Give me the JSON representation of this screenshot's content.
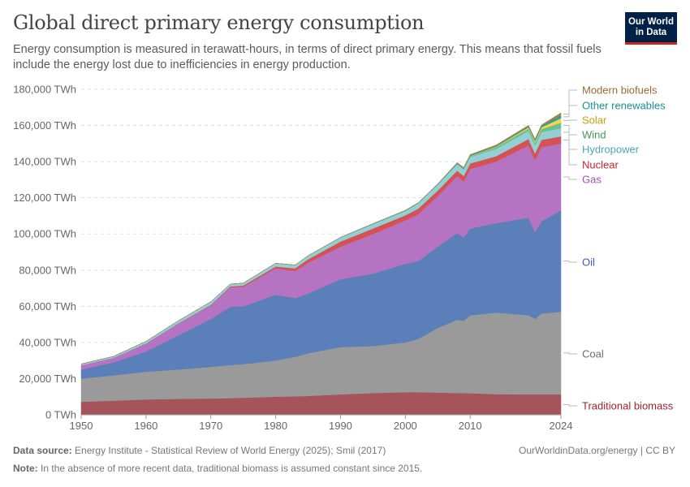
{
  "title": "Global direct primary energy consumption",
  "subtitle": "Energy consumption is measured in terawatt-hours, in terms of direct primary energy. This means that fossil fuels include the energy lost due to inefficiencies in energy production.",
  "logo": {
    "line1": "Our World",
    "line2": "in Data"
  },
  "footer": {
    "source_label": "Data source:",
    "source": "Energy Institute - Statistical Review of World Energy (2025); Smil (2017)",
    "note_label": "Note:",
    "note": "In the absence of more recent data, traditional biomass is assumed constant since 2015.",
    "license": "OurWorldinData.org/energy | CC BY"
  },
  "chart_data": {
    "type": "area",
    "stacked": true,
    "unit": "TWh",
    "ylim": [
      0,
      180000
    ],
    "xlim": [
      1950,
      2024
    ],
    "yticks": [
      "0 TWh",
      "20,000 TWh",
      "40,000 TWh",
      "60,000 TWh",
      "80,000 TWh",
      "100,000 TWh",
      "120,000 TWh",
      "140,000 TWh",
      "160,000 TWh",
      "180,000 TWh"
    ],
    "ytick_values": [
      0,
      20000,
      40000,
      60000,
      80000,
      100000,
      120000,
      140000,
      160000,
      180000
    ],
    "xticks": [
      "1950",
      "1960",
      "1970",
      "1980",
      "1990",
      "2000",
      "2010",
      "2024"
    ],
    "xtick_values": [
      1950,
      1960,
      1970,
      1980,
      1990,
      2000,
      2010,
      2024
    ],
    "grid": "horizontal dashed",
    "legend": "right, inline labels",
    "x": [
      1950,
      1955,
      1960,
      1965,
      1970,
      1973,
      1975,
      1980,
      1983,
      1985,
      1990,
      1995,
      2000,
      2002,
      2005,
      2008,
      2009,
      2010,
      2014,
      2019,
      2020,
      2021,
      2024
    ],
    "series": [
      {
        "name": "Traditional biomass",
        "color": "#a6545b",
        "label_color": "#a02333",
        "values": [
          7200,
          7800,
          8500,
          8800,
          9000,
          9200,
          9400,
          10000,
          10200,
          10400,
          11300,
          12000,
          12500,
          12500,
          12300,
          12000,
          12000,
          11900,
          11400,
          11300,
          11300,
          11300,
          11300
        ]
      },
      {
        "name": "Coal",
        "color": "#9a9a9a",
        "label_color": "#6d6d6d",
        "values": [
          12800,
          14000,
          15300,
          16200,
          17500,
          18300,
          18600,
          20000,
          21800,
          23600,
          26200,
          26000,
          27500,
          29500,
          35700,
          40500,
          40000,
          43100,
          45100,
          43700,
          41700,
          44700,
          45700
        ]
      },
      {
        "name": "Oil",
        "color": "#5b7fb8",
        "label_color": "#3a5ea8",
        "values": [
          5000,
          7200,
          11200,
          19000,
          26500,
          32200,
          32000,
          36400,
          32500,
          33000,
          37500,
          40000,
          43500,
          43000,
          45000,
          48000,
          46000,
          48000,
          49500,
          54000,
          48000,
          51000,
          56000
        ]
      },
      {
        "name": "Gas",
        "color": "#b673c1",
        "label_color": "#a352b0",
        "values": [
          2400,
          2500,
          4500,
          6500,
          7500,
          10800,
          10800,
          14600,
          15000,
          17000,
          18000,
          22000,
          24000,
          26000,
          28000,
          31500,
          31000,
          33000,
          34000,
          40000,
          40000,
          41000,
          37000
        ]
      },
      {
        "name": "Nuclear",
        "color": "#d65252",
        "label_color": "#c8232f",
        "values": [
          0,
          0,
          0,
          100,
          300,
          500,
          700,
          1000,
          1500,
          2000,
          2800,
          3000,
          2800,
          3000,
          3000,
          3000,
          3000,
          3000,
          3000,
          3500,
          3500,
          4000,
          4000
        ]
      },
      {
        "name": "Hydropower",
        "color": "#92d0d6",
        "label_color": "#4ba5b3",
        "values": [
          700,
          800,
          1100,
          1400,
          1700,
          1300,
          1300,
          1800,
          1800,
          2000,
          2200,
          2500,
          2500,
          3000,
          3300,
          3500,
          3600,
          3600,
          4000,
          4500,
          4500,
          4300,
          4500
        ]
      },
      {
        "name": "Wind",
        "color": "#6fbf8a",
        "label_color": "#3c9a58",
        "values": [
          0,
          0,
          0,
          0,
          0,
          0,
          0,
          0,
          0,
          0,
          0,
          0,
          0,
          0,
          0,
          400,
          500,
          500,
          1000,
          1300,
          1500,
          1700,
          3000
        ]
      },
      {
        "name": "Solar",
        "color": "#f2d54a",
        "label_color": "#c8a10a",
        "values": [
          0,
          0,
          0,
          0,
          0,
          0,
          0,
          0,
          0,
          0,
          0,
          0,
          0,
          0,
          0,
          0,
          0,
          100,
          300,
          700,
          800,
          1000,
          2500
        ]
      },
      {
        "name": "Other renewables",
        "color": "#2a9ea3",
        "label_color": "#1c8f97",
        "values": [
          0,
          0,
          0,
          0,
          0,
          0,
          0,
          0,
          0,
          0,
          100,
          150,
          200,
          200,
          250,
          300,
          300,
          300,
          400,
          600,
          700,
          700,
          1600
        ]
      },
      {
        "name": "Modern biofuels",
        "color": "#a3824e",
        "label_color": "#9a6b33",
        "values": [
          0,
          0,
          0,
          0,
          0,
          0,
          0,
          0,
          0,
          0,
          50,
          80,
          100,
          100,
          150,
          300,
          400,
          400,
          500,
          500,
          500,
          600,
          1400
        ]
      }
    ]
  }
}
